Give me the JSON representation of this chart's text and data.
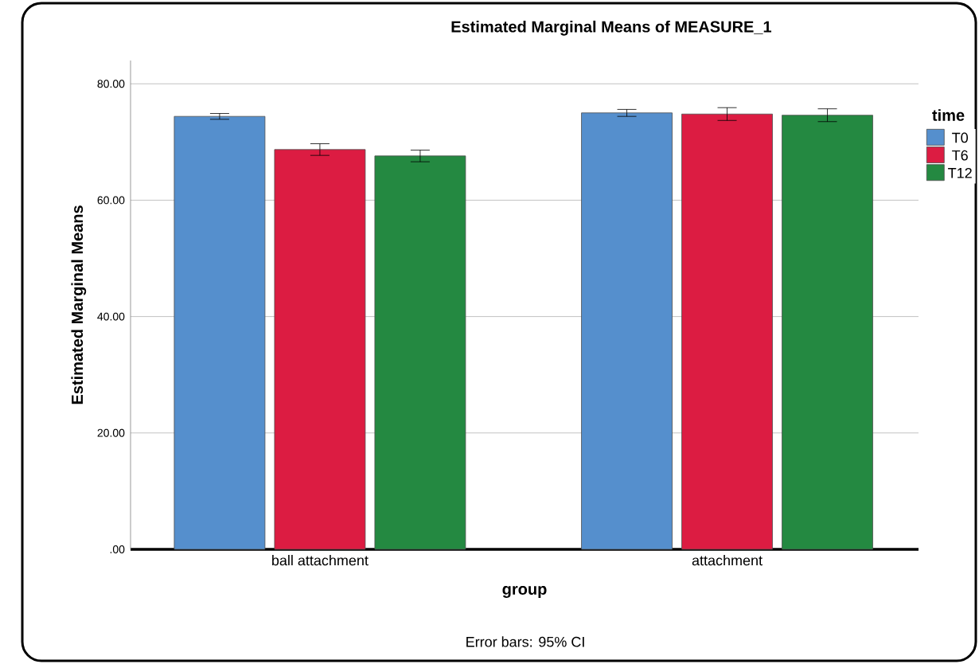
{
  "chart_data": {
    "type": "bar",
    "title": "Estimated Marginal Means of MEASURE_1",
    "xlabel": "group",
    "ylabel": "Estimated Marginal Means",
    "legend_title": "time",
    "categories": [
      "ball attachment",
      "attachment"
    ],
    "series": [
      {
        "name": "T0",
        "color": "#558fcd",
        "values": [
          74.4,
          75.0
        ],
        "errors": [
          0.5,
          0.6
        ]
      },
      {
        "name": "T6",
        "color": "#dc1c42",
        "values": [
          68.7,
          74.8
        ],
        "errors": [
          1.0,
          1.1
        ]
      },
      {
        "name": "T12",
        "color": "#248941",
        "values": [
          67.6,
          74.6
        ],
        "errors": [
          1.0,
          1.1
        ]
      }
    ],
    "ylim": [
      0,
      84
    ],
    "yticks": [
      {
        "value": 0,
        "label": ".00"
      },
      {
        "value": 20,
        "label": "20.00"
      },
      {
        "value": 40,
        "label": "40.00"
      },
      {
        "value": 60,
        "label": "60.00"
      },
      {
        "value": 80,
        "label": "80.00"
      }
    ],
    "grid": "y",
    "legend": "top right",
    "annotations": [
      "Error bars: 95% CI"
    ]
  }
}
